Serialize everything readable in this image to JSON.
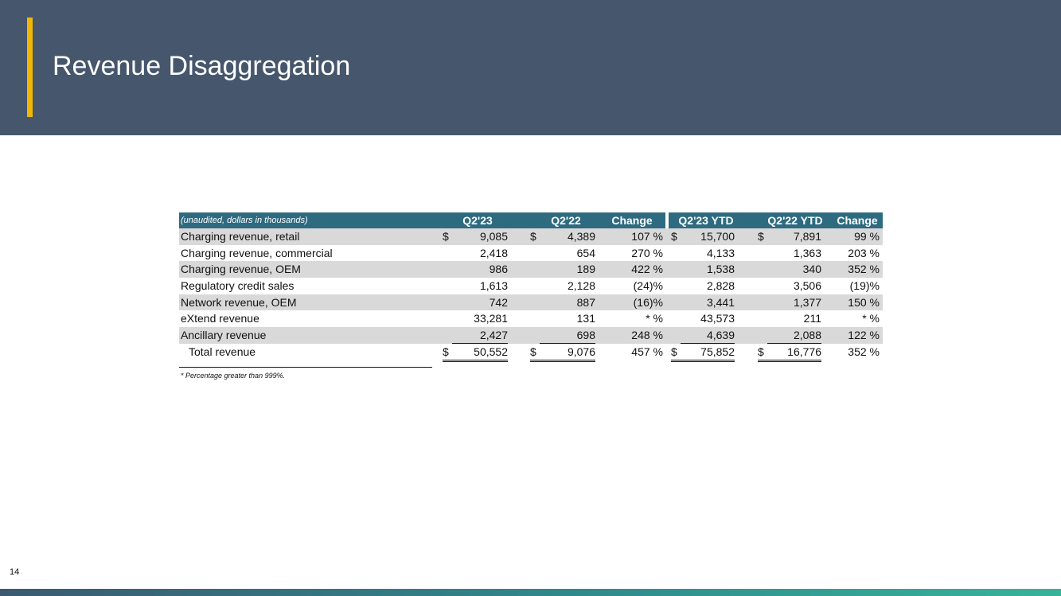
{
  "header": {
    "title": "Revenue Disaggregation"
  },
  "table": {
    "note": "(unaudited, dollars in thousands)",
    "columns": [
      "Q2'23",
      "Q2'22",
      "Change",
      "Q2'23 YTD",
      "Q2'22 YTD",
      "Change"
    ],
    "rows": [
      {
        "label": "Charging revenue, retail",
        "q223_sign": "$",
        "q223": "9,085",
        "q222_sign": "$",
        "q222": "4,389",
        "chg": "107 %",
        "ytd23_sign": "$",
        "ytd23": "15,700",
        "ytd22_sign": "$",
        "ytd22": "7,891",
        "ytd_chg": "99 %"
      },
      {
        "label": "Charging revenue, commercial",
        "q223_sign": "",
        "q223": "2,418",
        "q222_sign": "",
        "q222": "654",
        "chg": "270 %",
        "ytd23_sign": "",
        "ytd23": "4,133",
        "ytd22_sign": "",
        "ytd22": "1,363",
        "ytd_chg": "203 %"
      },
      {
        "label": "Charging revenue, OEM",
        "q223_sign": "",
        "q223": "986",
        "q222_sign": "",
        "q222": "189",
        "chg": "422 %",
        "ytd23_sign": "",
        "ytd23": "1,538",
        "ytd22_sign": "",
        "ytd22": "340",
        "ytd_chg": "352 %"
      },
      {
        "label": "Regulatory credit sales",
        "q223_sign": "",
        "q223": "1,613",
        "q222_sign": "",
        "q222": "2,128",
        "chg": "(24)%",
        "ytd23_sign": "",
        "ytd23": "2,828",
        "ytd22_sign": "",
        "ytd22": "3,506",
        "ytd_chg": "(19)%"
      },
      {
        "label": "Network revenue, OEM",
        "q223_sign": "",
        "q223": "742",
        "q222_sign": "",
        "q222": "887",
        "chg": "(16)%",
        "ytd23_sign": "",
        "ytd23": "3,441",
        "ytd22_sign": "",
        "ytd22": "1,377",
        "ytd_chg": "150 %"
      },
      {
        "label": "eXtend revenue",
        "q223_sign": "",
        "q223": "33,281",
        "q222_sign": "",
        "q222": "131",
        "chg": "*  %",
        "ytd23_sign": "",
        "ytd23": "43,573",
        "ytd22_sign": "",
        "ytd22": "211",
        "ytd_chg": "*  %"
      },
      {
        "label": "Ancillary revenue",
        "q223_sign": "",
        "q223": "2,427",
        "q222_sign": "",
        "q222": "698",
        "chg": "248 %",
        "ytd23_sign": "",
        "ytd23": "4,639",
        "ytd22_sign": "",
        "ytd22": "2,088",
        "ytd_chg": "122 %"
      }
    ],
    "total": {
      "label": "Total revenue",
      "q223_sign": "$",
      "q223": "50,552",
      "q222_sign": "$",
      "q222": "9,076",
      "chg": "457 %",
      "ytd23_sign": "$",
      "ytd23": "75,852",
      "ytd22_sign": "$",
      "ytd22": "16,776",
      "ytd_chg": "352 %"
    }
  },
  "footnote": "* Percentage greater than 999%.",
  "page_number": "14",
  "colors": {
    "header_bg": "#46566c",
    "accent": "#f2b705",
    "table_header": "#2e6b80",
    "row_shade": "#d9d9d9"
  }
}
